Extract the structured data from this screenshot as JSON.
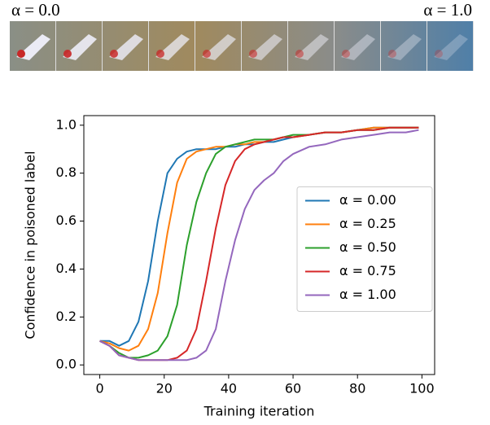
{
  "image_strip": {
    "left_label": "α = 0.0",
    "right_label": "α = 1.0"
  },
  "chart_data": {
    "type": "line",
    "xlabel": "Training iteration",
    "ylabel": "Confidence in poisoned label",
    "x": [
      0,
      3,
      6,
      9,
      12,
      15,
      18,
      21,
      24,
      27,
      30,
      33,
      36,
      39,
      42,
      45,
      48,
      51,
      54,
      57,
      60,
      65,
      70,
      75,
      80,
      85,
      90,
      95,
      99
    ],
    "series": [
      {
        "name": "α = 0.00",
        "color": "#1f77b4",
        "values": [
          0.1,
          0.1,
          0.08,
          0.1,
          0.18,
          0.35,
          0.6,
          0.8,
          0.86,
          0.89,
          0.9,
          0.9,
          0.9,
          0.91,
          0.91,
          0.92,
          0.92,
          0.93,
          0.93,
          0.94,
          0.95,
          0.96,
          0.97,
          0.97,
          0.98,
          0.99,
          0.99,
          0.99,
          0.99
        ]
      },
      {
        "name": "α = 0.25",
        "color": "#ff7f0e",
        "values": [
          0.1,
          0.09,
          0.07,
          0.06,
          0.08,
          0.15,
          0.3,
          0.55,
          0.76,
          0.86,
          0.89,
          0.9,
          0.91,
          0.91,
          0.92,
          0.92,
          0.93,
          0.93,
          0.94,
          0.95,
          0.95,
          0.96,
          0.97,
          0.97,
          0.98,
          0.99,
          0.99,
          0.99,
          0.99
        ]
      },
      {
        "name": "α = 0.50",
        "color": "#2ca02c",
        "values": [
          0.1,
          0.08,
          0.05,
          0.03,
          0.03,
          0.04,
          0.06,
          0.12,
          0.25,
          0.5,
          0.68,
          0.8,
          0.88,
          0.91,
          0.92,
          0.93,
          0.94,
          0.94,
          0.94,
          0.95,
          0.96,
          0.96,
          0.97,
          0.97,
          0.98,
          0.98,
          0.99,
          0.99,
          0.99
        ]
      },
      {
        "name": "α = 0.75",
        "color": "#d62728",
        "values": [
          0.1,
          0.08,
          0.04,
          0.03,
          0.02,
          0.02,
          0.02,
          0.02,
          0.03,
          0.06,
          0.15,
          0.35,
          0.57,
          0.75,
          0.85,
          0.9,
          0.92,
          0.93,
          0.94,
          0.95,
          0.95,
          0.96,
          0.97,
          0.97,
          0.98,
          0.98,
          0.99,
          0.99,
          0.99
        ]
      },
      {
        "name": "α = 1.00",
        "color": "#9467bd",
        "values": [
          0.1,
          0.08,
          0.04,
          0.03,
          0.02,
          0.02,
          0.02,
          0.02,
          0.02,
          0.02,
          0.03,
          0.06,
          0.15,
          0.35,
          0.52,
          0.65,
          0.73,
          0.77,
          0.8,
          0.85,
          0.88,
          0.91,
          0.92,
          0.94,
          0.95,
          0.96,
          0.97,
          0.97,
          0.98
        ]
      }
    ],
    "xlim": [
      -4.95,
      103.95
    ],
    "xticks": [
      0,
      20,
      40,
      60,
      80,
      100
    ],
    "ylim": [
      -0.04,
      1.04
    ],
    "yticks": [
      {
        "value": 0,
        "label": "0.0"
      },
      0.2,
      0.4,
      0.6,
      0.8,
      {
        "value": 1,
        "label": "1.0"
      }
    ],
    "legend": "center right",
    "grid": false
  }
}
